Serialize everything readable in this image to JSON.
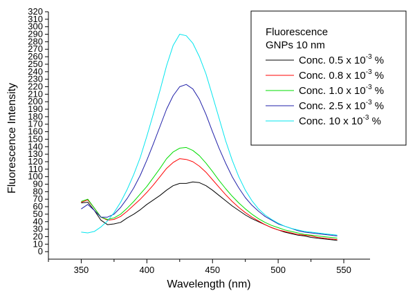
{
  "chart_data": {
    "type": "line",
    "xlabel": "Wavelength (nm)",
    "ylabel": "Fluorescence Intensity",
    "xlim": [
      325,
      570
    ],
    "ylim": [
      -10,
      320
    ],
    "x_ticks": [
      350,
      400,
      450,
      500,
      550
    ],
    "y_ticks": [
      0,
      10,
      20,
      30,
      40,
      50,
      60,
      70,
      80,
      90,
      100,
      110,
      120,
      130,
      140,
      150,
      160,
      170,
      180,
      190,
      200,
      210,
      220,
      230,
      240,
      250,
      260,
      270,
      280,
      290,
      300,
      310,
      320
    ],
    "grid": false,
    "legend_position": "top-right",
    "legend": {
      "title_line1": "Fluorescence",
      "title_line2": "GNPs 10 nm"
    },
    "series": [
      {
        "name": "Conc. 0.5 x 10-3 %",
        "label_main": "Conc. 0.5 x 10",
        "label_sup": "-3",
        "label_tail": " %",
        "color": "#000000",
        "x": [
          350,
          355,
          360,
          365,
          370,
          375,
          380,
          385,
          390,
          395,
          400,
          405,
          410,
          415,
          420,
          425,
          430,
          435,
          440,
          445,
          450,
          455,
          460,
          465,
          470,
          475,
          480,
          485,
          490,
          495,
          500,
          505,
          510,
          515,
          520,
          525,
          530,
          535,
          540,
          545
        ],
        "y": [
          65,
          66,
          55,
          42,
          36,
          37,
          39,
          45,
          50,
          56,
          63,
          69,
          75,
          82,
          88,
          91,
          91,
          93,
          92,
          88,
          82,
          75,
          68,
          61,
          55,
          49,
          44,
          40,
          36,
          32,
          29,
          26,
          24,
          22,
          21,
          19,
          18,
          17,
          16,
          15
        ]
      },
      {
        "name": "Conc. 0.8 x 10-3 %",
        "label_main": "Conc. 0.8 x 10",
        "label_sup": "-3",
        "label_tail": " %",
        "color": "#ff0000",
        "x": [
          350,
          355,
          360,
          365,
          370,
          375,
          380,
          385,
          390,
          395,
          400,
          405,
          410,
          415,
          420,
          425,
          430,
          435,
          440,
          445,
          450,
          455,
          460,
          465,
          470,
          475,
          480,
          485,
          490,
          495,
          500,
          505,
          510,
          515,
          520,
          525,
          530,
          535,
          540,
          545
        ],
        "y": [
          66,
          69,
          58,
          46,
          42,
          43,
          47,
          54,
          62,
          70,
          79,
          89,
          100,
          111,
          119,
          124,
          123,
          120,
          114,
          106,
          96,
          86,
          76,
          67,
          59,
          52,
          46,
          41,
          36,
          32,
          29,
          27,
          25,
          23,
          22,
          21,
          19,
          18,
          17,
          16
        ]
      },
      {
        "name": "Conc. 1.0 x 10-3 %",
        "label_main": "Conc. 1.0 x 10",
        "label_sup": "-3",
        "label_tail": " %",
        "color": "#00dd00",
        "x": [
          350,
          355,
          360,
          365,
          370,
          375,
          380,
          385,
          390,
          395,
          400,
          405,
          410,
          415,
          420,
          425,
          430,
          435,
          440,
          445,
          450,
          455,
          460,
          465,
          470,
          475,
          480,
          485,
          490,
          495,
          500,
          505,
          510,
          515,
          520,
          525,
          530,
          535,
          540,
          545
        ],
        "y": [
          67,
          70,
          58,
          46,
          43,
          45,
          50,
          58,
          67,
          77,
          87,
          99,
          111,
          124,
          133,
          138,
          139,
          135,
          128,
          118,
          107,
          95,
          84,
          74,
          65,
          57,
          50,
          44,
          39,
          35,
          32,
          29,
          27,
          25,
          23,
          22,
          21,
          20,
          19,
          18
        ]
      },
      {
        "name": "Conc. 2.5 x 10-3 %",
        "label_main": "Conc. 2.5 x 10",
        "label_sup": "-3",
        "label_tail": " %",
        "color": "#1f1fa8",
        "x": [
          350,
          355,
          360,
          365,
          370,
          375,
          380,
          385,
          390,
          395,
          400,
          405,
          410,
          415,
          420,
          425,
          430,
          435,
          440,
          445,
          450,
          455,
          460,
          465,
          470,
          475,
          480,
          485,
          490,
          495,
          500,
          505,
          510,
          515,
          520,
          525,
          530,
          535,
          540,
          545
        ],
        "y": [
          57,
          63,
          55,
          46,
          46,
          50,
          59,
          71,
          85,
          102,
          122,
          144,
          167,
          190,
          208,
          220,
          223,
          217,
          203,
          183,
          160,
          138,
          118,
          100,
          85,
          72,
          62,
          54,
          47,
          42,
          37,
          34,
          31,
          28,
          26,
          25,
          24,
          23,
          22,
          21
        ]
      },
      {
        "name": "Conc. 10 x 10-3 %",
        "label_main": "Conc. 10 x 10",
        "label_sup": "-3",
        "label_tail": " %",
        "color": "#00e5ee",
        "x": [
          350,
          355,
          360,
          365,
          370,
          375,
          380,
          385,
          390,
          395,
          400,
          405,
          410,
          415,
          420,
          425,
          430,
          435,
          440,
          445,
          450,
          455,
          460,
          465,
          470,
          475,
          480,
          485,
          490,
          495,
          500,
          505,
          510,
          515,
          520,
          525,
          530,
          535,
          540,
          545
        ],
        "y": [
          26,
          25,
          27,
          33,
          41,
          52,
          66,
          83,
          103,
          126,
          154,
          184,
          215,
          248,
          275,
          290,
          288,
          278,
          260,
          237,
          208,
          178,
          148,
          122,
          100,
          82,
          68,
          57,
          49,
          43,
          38,
          34,
          31,
          29,
          27,
          26,
          25,
          24,
          23,
          22
        ]
      }
    ]
  }
}
